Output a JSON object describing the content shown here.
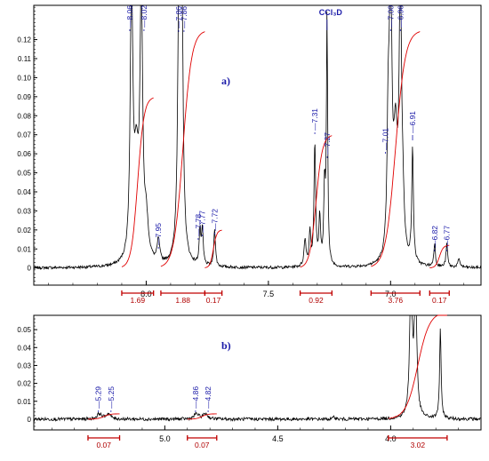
{
  "colors": {
    "spectrum": "#000000",
    "integral": "#e00000",
    "peak_label": "#1a1aa8",
    "integral_bracket": "#c00000"
  },
  "chart_data": [
    {
      "type": "line",
      "panel_label": "a)",
      "xlim": [
        8.46,
        6.63
      ],
      "ylim": [
        -0.009,
        0.138
      ],
      "x_ticks": [
        "8.0",
        "7.5",
        "7.0"
      ],
      "x_tick_values": [
        8.0,
        7.5,
        7.0
      ],
      "y_ticks": [
        "0",
        "0.01",
        "0.02",
        "0.03",
        "0.04",
        "0.05",
        "0.06",
        "0.07",
        "0.08",
        "0.09",
        "0.10",
        "0.11",
        "0.12"
      ],
      "y_tick_values": [
        0,
        0.01,
        0.02,
        0.03,
        0.04,
        0.05,
        0.06,
        0.07,
        0.08,
        0.09,
        0.1,
        0.11,
        0.12
      ],
      "annotation": "CCl₃D",
      "solvent_ppm": 7.26,
      "peaks": [
        {
          "ppm": 8.06,
          "label": "8.06",
          "height": 0.125
        },
        {
          "ppm": 8.02,
          "label": "8.02",
          "height": 0.125
        },
        {
          "ppm": 7.95,
          "label": "7.95",
          "height": 0.014
        },
        {
          "ppm": 7.86,
          "label": "7.86",
          "height": 0.125
        },
        {
          "ppm": 7.86,
          "label": "7.86",
          "height": 0.125
        },
        {
          "ppm": 7.78,
          "label": "7.78",
          "height": 0.022
        },
        {
          "ppm": 7.77,
          "label": "7.77",
          "height": 0.022
        },
        {
          "ppm": 7.72,
          "label": "7.72",
          "height": 0.02
        },
        {
          "ppm": 7.31,
          "label": "7.31",
          "height": 0.07
        },
        {
          "ppm": 7.27,
          "label": "7.27",
          "height": 0.065
        },
        {
          "ppm": 7.01,
          "label": "7.01",
          "height": 0.06
        },
        {
          "ppm": 7.0,
          "label": "7.00",
          "height": 0.125
        },
        {
          "ppm": 6.96,
          "label": "6.96",
          "height": 0.125
        },
        {
          "ppm": 6.91,
          "label": "6.91",
          "height": 0.06
        },
        {
          "ppm": 6.82,
          "label": "6.82",
          "height": 0.013
        },
        {
          "ppm": 6.77,
          "label": "6.77",
          "height": 0.013
        }
      ],
      "integrals": [
        {
          "from": 8.1,
          "to": 7.97,
          "value": "1.69"
        },
        {
          "from": 7.94,
          "to": 7.76,
          "value": "1.88"
        },
        {
          "from": 7.76,
          "to": 7.69,
          "value": "0.17"
        },
        {
          "from": 7.37,
          "to": 7.24,
          "value": "0.92"
        },
        {
          "from": 7.08,
          "to": 6.88,
          "value": "3.76"
        },
        {
          "from": 6.84,
          "to": 6.76,
          "value": "0.17"
        }
      ]
    },
    {
      "type": "line",
      "panel_label": "b)",
      "xlim": [
        5.58,
        3.6
      ],
      "ylim": [
        -0.006,
        0.058
      ],
      "x_ticks": [
        "5.0",
        "4.5",
        "4.0"
      ],
      "x_tick_values": [
        5.0,
        4.5,
        4.0
      ],
      "y_ticks": [
        "0",
        "0.01",
        "0.02",
        "0.03",
        "0.04",
        "0.05"
      ],
      "y_tick_values": [
        0,
        0.01,
        0.02,
        0.03,
        0.04,
        0.05
      ],
      "peaks": [
        {
          "ppm": 5.29,
          "label": "5.29",
          "height": 0.004
        },
        {
          "ppm": 5.25,
          "label": "5.25",
          "height": 0.004
        },
        {
          "ppm": 4.86,
          "label": "4.86",
          "height": 0.004
        },
        {
          "ppm": 4.82,
          "label": "4.82",
          "height": 0.004
        }
      ],
      "integrals": [
        {
          "from": 5.34,
          "to": 5.2,
          "value": "0.07"
        },
        {
          "from": 4.9,
          "to": 4.77,
          "value": "0.07"
        },
        {
          "from": 4.01,
          "to": 3.75,
          "value": "3.02"
        }
      ]
    }
  ]
}
